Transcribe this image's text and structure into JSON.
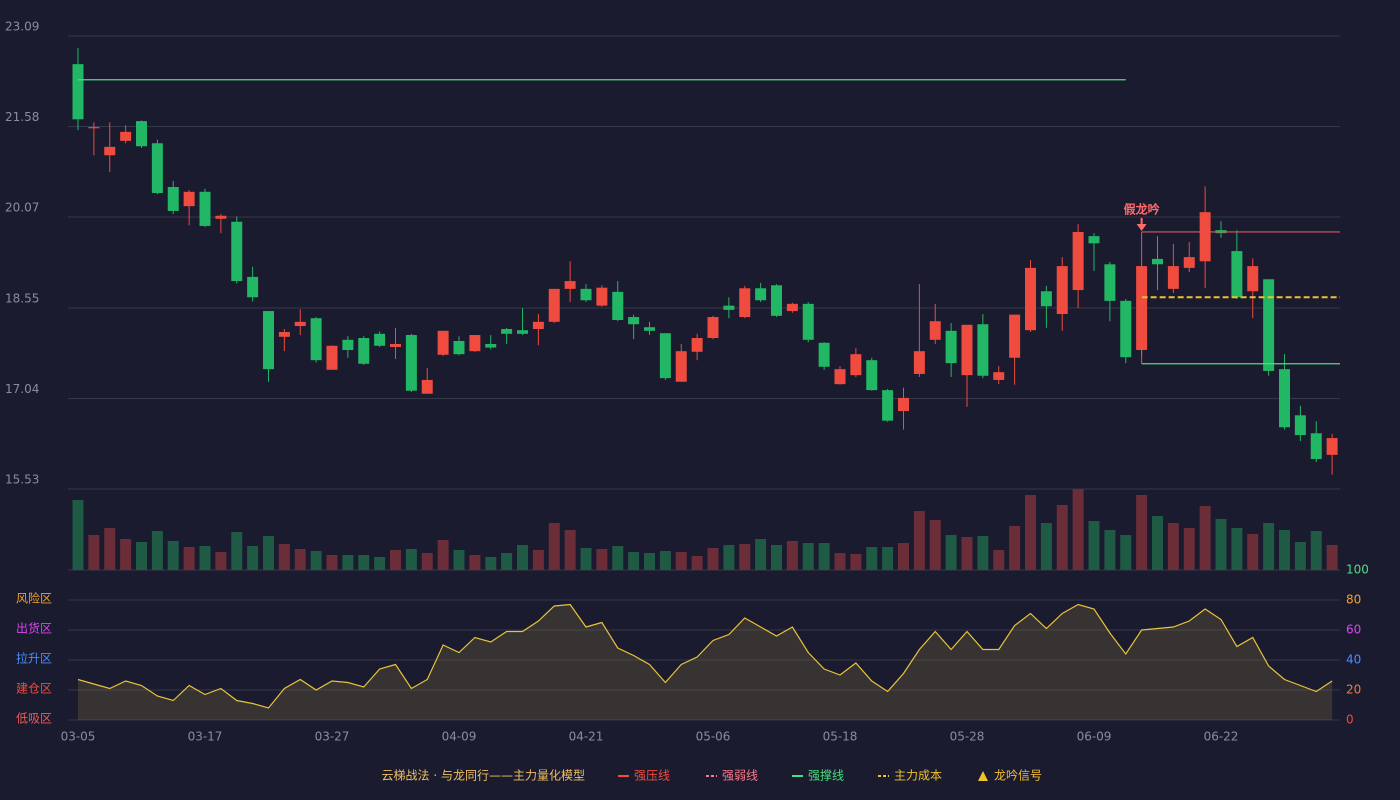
{
  "chart_data": [
    {
      "type": "candlestick",
      "categories": [
        "03-05",
        null,
        null,
        null,
        null,
        null,
        null,
        null,
        "03-17",
        null,
        null,
        null,
        null,
        null,
        null,
        null,
        "03-27",
        null,
        null,
        null,
        null,
        null,
        null,
        null,
        "04-09",
        null,
        null,
        null,
        null,
        null,
        null,
        null,
        "04-21",
        null,
        null,
        null,
        null,
        null,
        null,
        null,
        "05-06",
        null,
        null,
        null,
        null,
        null,
        null,
        null,
        "05-18",
        null,
        null,
        null,
        null,
        null,
        null,
        null,
        "05-28",
        null,
        null,
        null,
        null,
        null,
        null,
        null,
        "06-09",
        null,
        null,
        null,
        null,
        null,
        null,
        null,
        "06-22",
        null,
        null,
        null,
        null,
        null,
        null,
        null
      ],
      "open": [
        22.62,
        21.55,
        21.1,
        21.34,
        21.67,
        21.3,
        20.57,
        20.25,
        20.49,
        20.04,
        19.99,
        19.07,
        18.5,
        18.07,
        18.25,
        18.38,
        17.52,
        18.02,
        18.05,
        18.12,
        17.9,
        18.1,
        17.12,
        17.77,
        18.0,
        17.83,
        17.95,
        18.2,
        18.18,
        18.2,
        18.32,
        18.87,
        18.87,
        18.59,
        18.82,
        18.4,
        18.23,
        18.13,
        17.32,
        17.82,
        18.05,
        18.59,
        18.4,
        18.88,
        18.93,
        18.5,
        18.62,
        17.97,
        17.28,
        17.43,
        17.68,
        17.18,
        16.83,
        17.45,
        18.02,
        18.17,
        17.43,
        18.28,
        17.35,
        17.72,
        18.18,
        18.83,
        18.45,
        18.85,
        19.75,
        19.28,
        18.67,
        17.85,
        19.37,
        18.87,
        19.22,
        19.33,
        19.85,
        19.5,
        18.83,
        19.03,
        17.53,
        16.76,
        16.46,
        16.1
      ],
      "high": [
        22.89,
        21.65,
        21.65,
        21.6,
        21.68,
        21.36,
        20.67,
        20.52,
        20.54,
        20.12,
        20.08,
        19.24,
        18.5,
        18.2,
        18.53,
        18.4,
        17.93,
        18.08,
        18.08,
        18.16,
        18.22,
        18.12,
        17.55,
        18.17,
        18.08,
        18.1,
        18.1,
        18.22,
        18.55,
        18.45,
        18.87,
        19.33,
        18.95,
        18.93,
        19.0,
        18.44,
        18.32,
        18.13,
        17.95,
        18.12,
        18.42,
        18.73,
        18.92,
        18.97,
        18.95,
        18.64,
        18.65,
        17.98,
        17.58,
        17.88,
        17.72,
        17.2,
        17.22,
        18.95,
        18.62,
        18.3,
        18.27,
        18.45,
        17.58,
        18.44,
        19.35,
        18.92,
        19.4,
        19.95,
        19.8,
        19.32,
        18.7,
        19.25,
        19.75,
        19.62,
        19.65,
        20.58,
        20.0,
        19.85,
        19.38,
        19.03,
        17.78,
        16.92,
        16.66,
        16.45
      ],
      "low": [
        21.52,
        21.1,
        20.82,
        21.3,
        21.22,
        20.45,
        20.12,
        19.93,
        19.9,
        19.8,
        18.96,
        18.66,
        17.32,
        17.83,
        18.1,
        17.64,
        17.52,
        17.72,
        17.6,
        17.9,
        17.7,
        17.15,
        17.12,
        17.75,
        17.76,
        17.82,
        17.86,
        17.95,
        18.1,
        17.93,
        18.3,
        18.65,
        18.65,
        18.57,
        18.33,
        18.03,
        18.1,
        17.35,
        17.32,
        17.68,
        18.03,
        18.38,
        18.38,
        18.65,
        18.4,
        18.47,
        17.98,
        17.52,
        17.27,
        17.4,
        17.17,
        16.65,
        16.52,
        17.4,
        17.95,
        17.4,
        16.9,
        17.38,
        17.28,
        17.27,
        18.15,
        18.22,
        18.17,
        18.55,
        19.17,
        18.33,
        17.63,
        17.75,
        18.85,
        18.8,
        19.15,
        18.88,
        19.72,
        18.7,
        18.38,
        17.42,
        16.52,
        16.33,
        15.98,
        15.77
      ],
      "close": [
        21.7,
        21.57,
        21.24,
        21.49,
        21.25,
        20.47,
        20.17,
        20.49,
        19.92,
        20.09,
        19.0,
        18.73,
        17.53,
        18.15,
        18.32,
        17.68,
        17.92,
        17.85,
        17.62,
        17.92,
        17.95,
        17.17,
        17.35,
        18.17,
        17.78,
        18.1,
        17.89,
        18.12,
        18.12,
        18.32,
        18.87,
        19.0,
        18.68,
        18.89,
        18.35,
        18.28,
        18.17,
        17.38,
        17.83,
        18.05,
        18.4,
        18.52,
        18.88,
        18.68,
        18.42,
        18.62,
        18.02,
        17.57,
        17.53,
        17.78,
        17.18,
        16.67,
        17.05,
        17.83,
        18.33,
        17.63,
        18.27,
        17.42,
        17.48,
        18.44,
        19.22,
        18.58,
        19.25,
        19.82,
        19.63,
        18.67,
        17.73,
        19.25,
        19.28,
        19.25,
        19.4,
        20.15,
        19.8,
        18.73,
        19.25,
        17.5,
        16.56,
        16.43,
        16.03,
        16.38
      ],
      "up_color": "#ef4b3f",
      "down_color": "#21b765",
      "ylim": [
        15.53,
        23.09
      ],
      "yticks": [
        23.09,
        21.58,
        20.07,
        18.55,
        17.04,
        15.53
      ],
      "grid": true,
      "levels": [
        {
          "value": 22.36,
          "from": 0,
          "to": 66,
          "color": "#4ade80",
          "style": "solid"
        },
        {
          "value": 19.82,
          "from": 67,
          "to": 79,
          "color": "#e0545a",
          "style": "solid"
        },
        {
          "value": 18.73,
          "from": 67,
          "to": 79,
          "color": "#f0c030",
          "style": "dashed"
        },
        {
          "value": 17.62,
          "from": 67,
          "to": 79,
          "color": "#4ade80",
          "style": "solid"
        }
      ],
      "annotations": [
        {
          "text": "假龙吟",
          "index": 67,
          "color": "#ff6b6b"
        }
      ]
    },
    {
      "type": "bar",
      "values": [
        70,
        35,
        42,
        31,
        28,
        39,
        29,
        23,
        24,
        18,
        38,
        24,
        34,
        26,
        21,
        19,
        15,
        15,
        15,
        13,
        20,
        21,
        17,
        30,
        20,
        15,
        13,
        17,
        25,
        20,
        47,
        40,
        22,
        21,
        24,
        18,
        17,
        19,
        18,
        14,
        22,
        25,
        26,
        31,
        25,
        29,
        27,
        27,
        17,
        16,
        23,
        23,
        27,
        59,
        50,
        35,
        33,
        34,
        20,
        44,
        75,
        47,
        65,
        81,
        49,
        40,
        35,
        75,
        54,
        47,
        42,
        64,
        51,
        42,
        36,
        47,
        40,
        28,
        39,
        25
      ],
      "up_color": "#6b2d38",
      "down_color": "#1f5a44"
    },
    {
      "type": "area",
      "values": [
        27,
        24,
        21,
        26,
        23,
        16,
        13,
        23,
        17,
        21,
        13,
        11,
        8,
        21,
        27,
        20,
        26,
        25,
        22,
        34,
        37,
        21,
        27,
        50,
        45,
        55,
        52,
        59,
        59,
        66,
        76,
        77,
        62,
        65,
        48,
        43,
        37,
        25,
        37,
        42,
        53,
        57,
        68,
        62,
        56,
        62,
        45,
        34,
        30,
        38,
        26,
        19,
        31,
        47,
        59,
        47,
        59,
        47,
        47,
        63,
        71,
        61,
        71,
        77,
        74,
        58,
        44,
        60,
        61,
        62,
        66,
        74,
        67,
        49,
        55,
        36,
        27,
        23,
        19,
        26
      ],
      "color": "#e8c33a",
      "ylim": [
        0,
        100
      ],
      "yticks": [
        0,
        20,
        40,
        60,
        80,
        100
      ],
      "ytick_colors": [
        "#ef4b3f",
        "#ef7a3f",
        "#4a8cff",
        "#d946ef",
        "#f0a030",
        "#4ade80"
      ],
      "zones": [
        {
          "label": "风险区",
          "value": 80,
          "color": "#f0a030"
        },
        {
          "label": "出货区",
          "value": 60,
          "color": "#d946ef"
        },
        {
          "label": "拉升区",
          "value": 40,
          "color": "#4a8cff"
        },
        {
          "label": "建仓区",
          "value": 20,
          "color": "#ef4b3f"
        },
        {
          "label": "低吸区",
          "value": 0,
          "color": "#ef5a5a"
        }
      ]
    }
  ],
  "legend": {
    "title": "云梯战法 · 与龙同行——主力量化模型",
    "title_color": "#f0c060",
    "items": [
      {
        "label": "强压线",
        "color": "#ef4b3f",
        "style": "solid"
      },
      {
        "label": "强弱线",
        "color": "#ff7a8a",
        "style": "dashed"
      },
      {
        "label": "强撑线",
        "color": "#4ade80",
        "style": "solid"
      },
      {
        "label": "主力成本",
        "color": "#f0c030",
        "style": "dashed"
      },
      {
        "label": "龙吟信号",
        "color": "#f0c030",
        "style": "triangle"
      }
    ]
  }
}
